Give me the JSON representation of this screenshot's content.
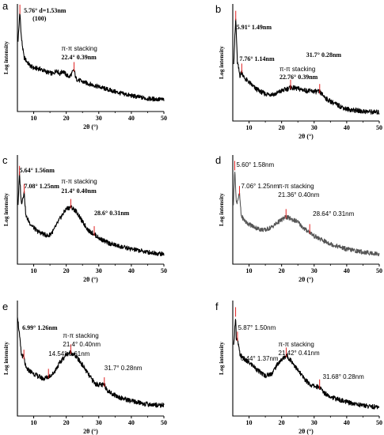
{
  "chart_data": [
    {
      "type": "line",
      "panel": "a",
      "xlabel": "2θ (°)",
      "ylabel": "Log intensity",
      "xlim": [
        5,
        50
      ],
      "xticks": [
        10,
        20,
        30,
        40,
        50
      ],
      "color": "#000000",
      "x": [
        5.2,
        5.76,
        6.2,
        7,
        8,
        9,
        10,
        12,
        14,
        16,
        17,
        18,
        19,
        20,
        21,
        22.4,
        23,
        25,
        27,
        30,
        33,
        36,
        40,
        45,
        50
      ],
      "y": [
        0.72,
        1.0,
        0.75,
        0.55,
        0.5,
        0.46,
        0.44,
        0.43,
        0.4,
        0.38,
        0.42,
        0.38,
        0.41,
        0.37,
        0.35,
        0.42,
        0.33,
        0.3,
        0.28,
        0.25,
        0.22,
        0.19,
        0.16,
        0.13,
        0.12
      ],
      "annotations": [
        {
          "text": "5.76° d=1.53nm",
          "x": 5.76
        },
        {
          "text": "(100)",
          "x": 5.76
        },
        {
          "text": "π-π stacking",
          "x": 22.4
        },
        {
          "text": "22.4°  0.39nm",
          "x": 22.4
        }
      ]
    },
    {
      "type": "line",
      "panel": "b",
      "xlabel": "2θ (°)",
      "ylabel": "Log intensity",
      "xlim": [
        5,
        50
      ],
      "xticks": [
        10,
        20,
        30,
        40,
        50
      ],
      "color": "#000000",
      "x": [
        5.3,
        5.91,
        6.4,
        7.2,
        7.76,
        8.5,
        10,
        12,
        15,
        18,
        20,
        22.76,
        25,
        28,
        31.7,
        34,
        37,
        40,
        45,
        50
      ],
      "y": [
        0.55,
        0.95,
        0.55,
        0.42,
        0.46,
        0.4,
        0.36,
        0.3,
        0.25,
        0.25,
        0.28,
        0.31,
        0.3,
        0.28,
        0.27,
        0.2,
        0.15,
        0.11,
        0.09,
        0.08
      ],
      "annotations": [
        {
          "text": "5.91° 1.49nm",
          "x": 5.91
        },
        {
          "text": "7.76° 1.14nm",
          "x": 7.76
        },
        {
          "text": "π-π stacking",
          "x": 22.76
        },
        {
          "text": "22.76° 0.39nm",
          "x": 22.76
        },
        {
          "text": "31.7° 0.28nm",
          "x": 31.7
        }
      ]
    },
    {
      "type": "line",
      "panel": "c",
      "xlabel": "2θ (°)",
      "ylabel": "Log intensity",
      "xlim": [
        5,
        50
      ],
      "xticks": [
        10,
        20,
        30,
        40,
        50
      ],
      "color": "#000000",
      "x": [
        5.2,
        5.64,
        6.2,
        7.08,
        7.6,
        9,
        11,
        13,
        14.5,
        16,
        18,
        20,
        21.4,
        23,
        25,
        27,
        28.6,
        30,
        33,
        36,
        40,
        45,
        50
      ],
      "y": [
        0.6,
        0.9,
        0.6,
        0.72,
        0.48,
        0.4,
        0.33,
        0.3,
        0.28,
        0.33,
        0.45,
        0.55,
        0.57,
        0.53,
        0.42,
        0.33,
        0.3,
        0.26,
        0.21,
        0.18,
        0.15,
        0.12,
        0.1
      ],
      "annotations": [
        {
          "text": "5.64° 1.56nm",
          "x": 5.64
        },
        {
          "text": "7.08° 1.25nm",
          "x": 7.08
        },
        {
          "text": "π-π stacking",
          "x": 21.4
        },
        {
          "text": "21.4° 0.40nm",
          "x": 21.4
        },
        {
          "text": "28.6° 0.31nm",
          "x": 28.6
        }
      ]
    },
    {
      "type": "line",
      "panel": "d",
      "xlabel": "2θ (°)",
      "ylabel": "Log intensity",
      "xlim": [
        5,
        50
      ],
      "xticks": [
        10,
        20,
        30,
        40,
        50
      ],
      "color": "#555555",
      "x": [
        5.2,
        5.6,
        6.1,
        7.06,
        7.6,
        9,
        11,
        13,
        15,
        17,
        19,
        21.36,
        23,
        25,
        27,
        28.64,
        30,
        33,
        36,
        40,
        45,
        50
      ],
      "y": [
        0.6,
        0.95,
        0.6,
        0.7,
        0.48,
        0.42,
        0.38,
        0.35,
        0.34,
        0.37,
        0.42,
        0.47,
        0.45,
        0.42,
        0.35,
        0.32,
        0.28,
        0.23,
        0.19,
        0.15,
        0.12,
        0.1
      ],
      "annotations": [
        {
          "text": "5.60° 1.58nm",
          "x": 5.6
        },
        {
          "text": "7.06° 1.25nm",
          "x": 7.06
        },
        {
          "text": "π-π stacking",
          "x": 21.36
        },
        {
          "text": "21.36° 0.40nm",
          "x": 21.36
        },
        {
          "text": "28.64° 0.31nm",
          "x": 28.64
        }
      ]
    },
    {
      "type": "line",
      "panel": "e",
      "xlabel": "2θ (°)",
      "ylabel": "Log intensity",
      "xlim": [
        5,
        50
      ],
      "xticks": [
        10,
        20,
        30,
        40,
        50
      ],
      "color": "#000000",
      "x": [
        5.0,
        5.5,
        6.2,
        6.99,
        7.6,
        9,
        11,
        13,
        14.54,
        16,
        18,
        20,
        21.4,
        23,
        25,
        27,
        29,
        31.7,
        33,
        36,
        40,
        45,
        50
      ],
      "y": [
        0.95,
        0.8,
        0.58,
        0.55,
        0.45,
        0.42,
        0.38,
        0.35,
        0.37,
        0.4,
        0.5,
        0.58,
        0.6,
        0.56,
        0.48,
        0.38,
        0.3,
        0.29,
        0.23,
        0.18,
        0.14,
        0.11,
        0.1
      ],
      "annotations": [
        {
          "text": "6.99° 1.26nm",
          "x": 6.99
        },
        {
          "text": "14.54° 0.61nm",
          "x": 14.54
        },
        {
          "text": "π-π stacking",
          "x": 21.4
        },
        {
          "text": "21.4° 0.40nm",
          "x": 21.4
        },
        {
          "text": "31.7° 0.28nm",
          "x": 31.7
        }
      ]
    },
    {
      "type": "line",
      "panel": "f",
      "xlabel": "2θ (°)",
      "ylabel": "Log intensity",
      "xlim": [
        5,
        50
      ],
      "xticks": [
        10,
        20,
        30,
        40,
        50
      ],
      "color": "#000000",
      "x": [
        5.3,
        5.87,
        6.1,
        6.44,
        7.2,
        9,
        11,
        13,
        15,
        17,
        19,
        21.42,
        23,
        25,
        27,
        29,
        31.68,
        33,
        36,
        40,
        45,
        50
      ],
      "y": [
        0.65,
        0.95,
        0.7,
        0.72,
        0.58,
        0.52,
        0.48,
        0.42,
        0.38,
        0.4,
        0.5,
        0.57,
        0.52,
        0.43,
        0.35,
        0.29,
        0.27,
        0.22,
        0.17,
        0.13,
        0.1,
        0.08
      ],
      "annotations": [
        {
          "text": "5.87° 1.50nm",
          "x": 5.87
        },
        {
          "text": "6.44° 1.37nm",
          "x": 6.44
        },
        {
          "text": "π-π stacking",
          "x": 21.42
        },
        {
          "text": "21.42° 0.41nm",
          "x": 21.42
        },
        {
          "text": "31.68° 0.28nm",
          "x": 31.68
        }
      ]
    }
  ]
}
